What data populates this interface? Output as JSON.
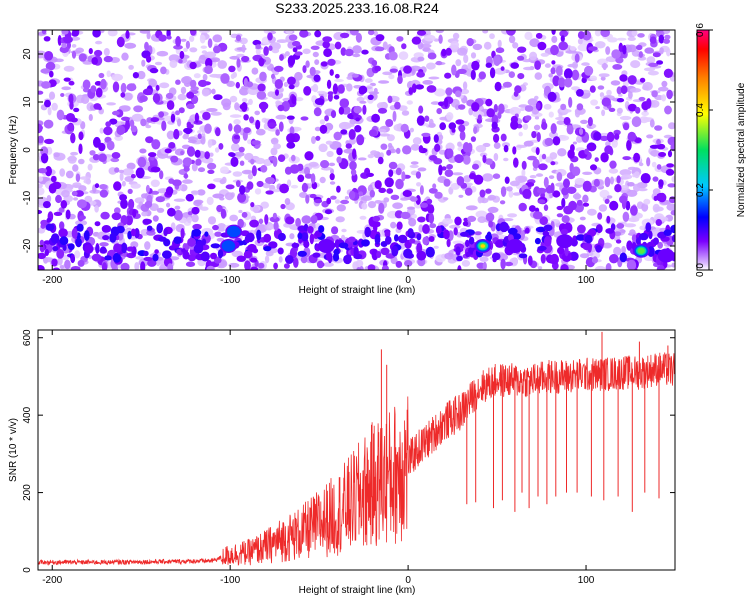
{
  "figure": {
    "title": "S233.2025.233.16.08.R24"
  },
  "chart_data": [
    {
      "type": "heatmap",
      "title": "",
      "xlabel": "Height of straight line (km)",
      "ylabel": "Frequency (Hz)",
      "xlim": [
        -208,
        150
      ],
      "ylim": [
        -25,
        25
      ],
      "xticks": [
        -200,
        -100,
        0,
        100
      ],
      "yticks": [
        -20,
        -10,
        0,
        10,
        20
      ],
      "colorbar": {
        "label": "Normalized spectral amplitude",
        "range": [
          0.0,
          0.6
        ],
        "ticks": [
          "0.0",
          "0.2",
          "0.4",
          "0.6"
        ],
        "colors": [
          "#ffffff",
          "#d8b6ff",
          "#7a00ff",
          "#0000ff",
          "#00c8ff",
          "#00e060",
          "#ffff00",
          "#ff8000",
          "#ff0000",
          "#ff0080"
        ]
      },
      "notable_peaks": [
        {
          "x": 42,
          "y": -20,
          "value": 0.42
        },
        {
          "x": 131,
          "y": -21,
          "value": 0.4
        },
        {
          "x": -101,
          "y": -20,
          "value": 0.18
        },
        {
          "x": -98,
          "y": -17,
          "value": 0.16
        },
        {
          "x": -46,
          "y": -20,
          "value": 0.15
        },
        {
          "x": 88,
          "y": -19,
          "value": 0.14
        },
        {
          "x": 60,
          "y": -20,
          "value": 0.14
        },
        {
          "x": 145,
          "y": -22,
          "value": 0.13
        }
      ],
      "background_level": 0.05,
      "grid": false
    },
    {
      "type": "line",
      "title": "",
      "xlabel": "Height of straight line (km)",
      "ylabel": "SNR (10 * v/v)",
      "xlim": [
        -208,
        150
      ],
      "ylim": [
        0,
        620
      ],
      "xticks": [
        -200,
        -100,
        0,
        100
      ],
      "yticks": [
        0,
        200,
        400,
        600
      ],
      "color": "#ee2a2a",
      "grid": false,
      "series": [
        {
          "x": [
            -208,
            -190,
            -170,
            -150,
            -130,
            -110,
            -100,
            -90,
            -80,
            -70,
            -60,
            -50,
            -40,
            -30,
            -20,
            -15,
            -10,
            -5,
            0,
            5,
            10,
            20,
            30,
            35,
            40,
            50,
            60,
            70,
            80,
            90,
            100,
            110,
            120,
            130,
            140,
            150
          ],
          "y": [
            20,
            20,
            20,
            21,
            22,
            24,
            40,
            45,
            60,
            80,
            95,
            120,
            145,
            180,
            220,
            230,
            240,
            260,
            280,
            310,
            330,
            380,
            410,
            440,
            470,
            490,
            490,
            490,
            500,
            500,
            505,
            505,
            510,
            510,
            520,
            515
          ]
        }
      ],
      "spikes": [
        {
          "x": -15,
          "y": 570
        },
        {
          "x": -12,
          "y": 530
        },
        {
          "x": 109,
          "y": 615
        },
        {
          "x": 130,
          "y": 590
        },
        {
          "x": 146,
          "y": 580
        },
        {
          "x": 33,
          "y": 170
        },
        {
          "x": 38,
          "y": 175
        },
        {
          "x": 48,
          "y": 160
        },
        {
          "x": 53,
          "y": 180
        },
        {
          "x": 60,
          "y": 150
        },
        {
          "x": 64,
          "y": 200
        },
        {
          "x": 68,
          "y": 160
        },
        {
          "x": 73,
          "y": 190
        },
        {
          "x": 78,
          "y": 170
        },
        {
          "x": 83,
          "y": 190
        },
        {
          "x": 89,
          "y": 200
        },
        {
          "x": 95,
          "y": 200
        },
        {
          "x": 103,
          "y": 190
        },
        {
          "x": 110,
          "y": 180
        },
        {
          "x": 118,
          "y": 190
        },
        {
          "x": 126,
          "y": 150
        },
        {
          "x": 133,
          "y": 200
        },
        {
          "x": 141,
          "y": 185
        }
      ]
    }
  ]
}
